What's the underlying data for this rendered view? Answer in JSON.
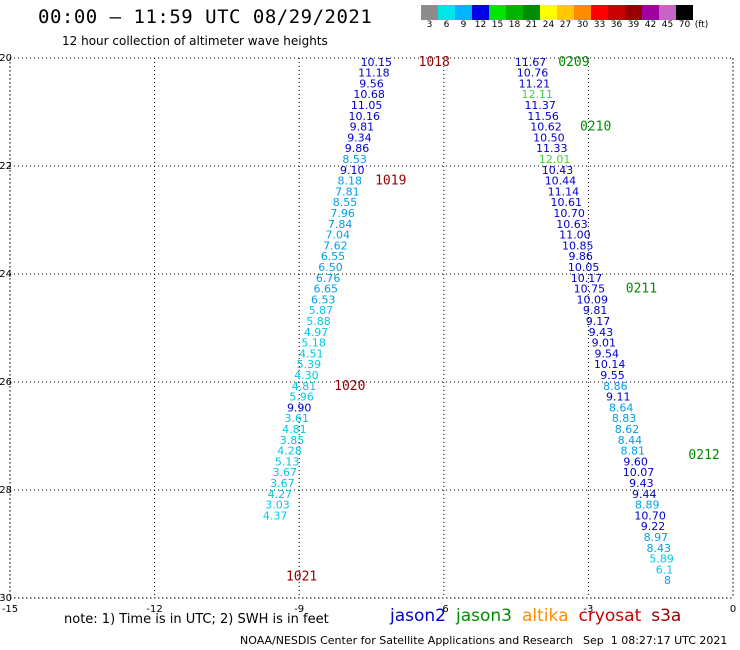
{
  "header": {
    "title": "00:00 – 11:59 UTC 08/29/2021",
    "subtitle": "12 hour collection of altimeter wave heights"
  },
  "legend": {
    "unit": "(ft)",
    "bins": [
      {
        "label": "3",
        "color": "#8c8c8c"
      },
      {
        "label": "6",
        "color": "#00e5e5"
      },
      {
        "label": "9",
        "color": "#00b4ff"
      },
      {
        "label": "12",
        "color": "#0000e6"
      },
      {
        "label": "15",
        "color": "#00e600"
      },
      {
        "label": "18",
        "color": "#00b400"
      },
      {
        "label": "21",
        "color": "#008c00"
      },
      {
        "label": "24",
        "color": "#ffff00"
      },
      {
        "label": "27",
        "color": "#ffc800"
      },
      {
        "label": "30",
        "color": "#ff8c00"
      },
      {
        "label": "33",
        "color": "#ff0000"
      },
      {
        "label": "36",
        "color": "#c80000"
      },
      {
        "label": "39",
        "color": "#960000"
      },
      {
        "label": "42",
        "color": "#a000a0"
      },
      {
        "label": "45",
        "color": "#c864c8"
      },
      {
        "label": "70",
        "color": "#000000"
      }
    ]
  },
  "footer": {
    "note": "note: 1) Time is in UTC; 2) SWH is in feet",
    "satellites": [
      {
        "name": "jason2",
        "color": "#0000cc"
      },
      {
        "name": "jason3",
        "color": "#008c00"
      },
      {
        "name": "altika",
        "color": "#ff8c00"
      },
      {
        "name": "cryosat",
        "color": "#cc0000"
      },
      {
        "name": "s3a",
        "color": "#960000"
      }
    ],
    "credit": "NOAA/NESDIS Center for Satellite Applications and Research",
    "generated": "Sep  1 08:27:17 UTC 2021"
  },
  "chart_data": {
    "type": "scatter",
    "title": "00:00 – 11:59 UTC 08/29/2021",
    "subtitle": "12 hour collection of altimeter wave heights",
    "xlim": [
      -15,
      0
    ],
    "ylim": [
      -30,
      -20
    ],
    "x_ticks": [
      -15,
      -12,
      -9,
      -6,
      -3,
      0
    ],
    "y_ticks": [
      -20,
      -22,
      -24,
      -26,
      -28,
      -30
    ],
    "grid": true,
    "series": [
      {
        "name": "track-west",
        "points": [
          {
            "x": -7.4,
            "y": -20.07,
            "v": "10.15",
            "c": "#0000cc"
          },
          {
            "x": -7.45,
            "y": -20.27,
            "v": "11.18",
            "c": "#0000cc"
          },
          {
            "x": -7.5,
            "y": -20.47,
            "v": "9.56",
            "c": "#0000cc"
          },
          {
            "x": -7.55,
            "y": -20.67,
            "v": "10.68",
            "c": "#0000cc"
          },
          {
            "x": -7.6,
            "y": -20.87,
            "v": "11.05",
            "c": "#0000cc"
          },
          {
            "x": -7.65,
            "y": -21.07,
            "v": "10.16",
            "c": "#0000cc"
          },
          {
            "x": -7.7,
            "y": -21.27,
            "v": "9.81",
            "c": "#0000cc"
          },
          {
            "x": -7.75,
            "y": -21.47,
            "v": "9.34",
            "c": "#0000cc"
          },
          {
            "x": -7.8,
            "y": -21.67,
            "v": "9.86",
            "c": "#0000cc"
          },
          {
            "x": -7.85,
            "y": -21.87,
            "v": "8.53",
            "c": "#00a0e6"
          },
          {
            "x": -7.9,
            "y": -22.07,
            "v": "9.10",
            "c": "#0000cc"
          },
          {
            "x": -7.95,
            "y": -22.27,
            "v": "8.18",
            "c": "#00a0e6"
          },
          {
            "x": -8.0,
            "y": -22.47,
            "v": "7.81",
            "c": "#00a0e6"
          },
          {
            "x": -8.05,
            "y": -22.67,
            "v": "8.55",
            "c": "#00a0e6"
          },
          {
            "x": -8.1,
            "y": -22.87,
            "v": "7.96",
            "c": "#00a0e6"
          },
          {
            "x": -8.15,
            "y": -23.07,
            "v": "7.84",
            "c": "#00a0e6"
          },
          {
            "x": -8.2,
            "y": -23.27,
            "v": "7.04",
            "c": "#00a0e6"
          },
          {
            "x": -8.25,
            "y": -23.47,
            "v": "7.62",
            "c": "#00a0e6"
          },
          {
            "x": -8.3,
            "y": -23.67,
            "v": "6.55",
            "c": "#00a0e6"
          },
          {
            "x": -8.35,
            "y": -23.87,
            "v": "6.50",
            "c": "#00a0e6"
          },
          {
            "x": -8.4,
            "y": -24.07,
            "v": "6.76",
            "c": "#00a0e6"
          },
          {
            "x": -8.45,
            "y": -24.27,
            "v": "6.65",
            "c": "#00a0e6"
          },
          {
            "x": -8.5,
            "y": -24.47,
            "v": "6.53",
            "c": "#00a0e6"
          },
          {
            "x": -8.55,
            "y": -24.67,
            "v": "5.87",
            "c": "#00c8e6"
          },
          {
            "x": -8.6,
            "y": -24.87,
            "v": "5.88",
            "c": "#00c8e6"
          },
          {
            "x": -8.65,
            "y": -25.07,
            "v": "4.97",
            "c": "#00c8e6"
          },
          {
            "x": -8.7,
            "y": -25.27,
            "v": "5.18",
            "c": "#00c8e6"
          },
          {
            "x": -8.75,
            "y": -25.47,
            "v": "4.51",
            "c": "#00c8e6"
          },
          {
            "x": -8.8,
            "y": -25.67,
            "v": "5.39",
            "c": "#00c8e6"
          },
          {
            "x": -8.85,
            "y": -25.87,
            "v": "4.30",
            "c": "#00c8e6"
          },
          {
            "x": -8.9,
            "y": -26.07,
            "v": "4.81",
            "c": "#00c8e6"
          },
          {
            "x": -8.95,
            "y": -26.27,
            "v": "5.96",
            "c": "#00c8e6"
          },
          {
            "x": -9.0,
            "y": -26.47,
            "v": "9.90",
            "c": "#0000cc"
          },
          {
            "x": -9.05,
            "y": -26.67,
            "v": "3.61",
            "c": "#00c8e6"
          },
          {
            "x": -9.1,
            "y": -26.87,
            "v": "4.81",
            "c": "#00c8e6"
          },
          {
            "x": -9.15,
            "y": -27.07,
            "v": "3.85",
            "c": "#00c8e6"
          },
          {
            "x": -9.2,
            "y": -27.27,
            "v": "4.28",
            "c": "#00c8e6"
          },
          {
            "x": -9.25,
            "y": -27.47,
            "v": "5.13",
            "c": "#00c8e6"
          },
          {
            "x": -9.3,
            "y": -27.67,
            "v": "3.67",
            "c": "#00c8e6"
          },
          {
            "x": -9.35,
            "y": -27.87,
            "v": "3.67",
            "c": "#00c8e6"
          },
          {
            "x": -9.4,
            "y": -28.07,
            "v": "4.27",
            "c": "#00c8e6"
          },
          {
            "x": -9.45,
            "y": -28.27,
            "v": "3.03",
            "c": "#00c8e6"
          },
          {
            "x": -9.5,
            "y": -28.47,
            "v": "4.37",
            "c": "#00c8e6"
          }
        ]
      },
      {
        "name": "track-east",
        "points": [
          {
            "x": -4.2,
            "y": -20.07,
            "v": "11.67",
            "c": "#0000cc"
          },
          {
            "x": -4.16,
            "y": -20.27,
            "v": "10.76",
            "c": "#0000cc"
          },
          {
            "x": -4.12,
            "y": -20.47,
            "v": "11.21",
            "c": "#0000cc"
          },
          {
            "x": -4.06,
            "y": -20.67,
            "v": "12.11",
            "c": "#44cc44"
          },
          {
            "x": -4.0,
            "y": -20.87,
            "v": "11.37",
            "c": "#0000cc"
          },
          {
            "x": -3.94,
            "y": -21.07,
            "v": "11.56",
            "c": "#0000cc"
          },
          {
            "x": -3.88,
            "y": -21.27,
            "v": "10.62",
            "c": "#0000cc"
          },
          {
            "x": -3.82,
            "y": -21.47,
            "v": "10.50",
            "c": "#0000cc"
          },
          {
            "x": -3.76,
            "y": -21.67,
            "v": "11.33",
            "c": "#0000cc"
          },
          {
            "x": -3.7,
            "y": -21.87,
            "v": "12.01",
            "c": "#44cc44"
          },
          {
            "x": -3.64,
            "y": -22.07,
            "v": "10.43",
            "c": "#0000cc"
          },
          {
            "x": -3.58,
            "y": -22.27,
            "v": "10.44",
            "c": "#0000cc"
          },
          {
            "x": -3.52,
            "y": -22.47,
            "v": "11.14",
            "c": "#0000cc"
          },
          {
            "x": -3.46,
            "y": -22.67,
            "v": "10.61",
            "c": "#0000cc"
          },
          {
            "x": -3.4,
            "y": -22.87,
            "v": "10.70",
            "c": "#0000cc"
          },
          {
            "x": -3.34,
            "y": -23.07,
            "v": "10.63",
            "c": "#0000cc"
          },
          {
            "x": -3.28,
            "y": -23.27,
            "v": "11.00",
            "c": "#0000cc"
          },
          {
            "x": -3.22,
            "y": -23.47,
            "v": "10.85",
            "c": "#0000cc"
          },
          {
            "x": -3.16,
            "y": -23.67,
            "v": "9.86",
            "c": "#0000cc"
          },
          {
            "x": -3.1,
            "y": -23.87,
            "v": "10.05",
            "c": "#0000cc"
          },
          {
            "x": -3.04,
            "y": -24.07,
            "v": "10.17",
            "c": "#0000cc"
          },
          {
            "x": -2.98,
            "y": -24.27,
            "v": "10.75",
            "c": "#0000cc"
          },
          {
            "x": -2.92,
            "y": -24.47,
            "v": "10.09",
            "c": "#0000cc"
          },
          {
            "x": -2.86,
            "y": -24.67,
            "v": "9.81",
            "c": "#0000cc"
          },
          {
            "x": -2.8,
            "y": -24.87,
            "v": "9.17",
            "c": "#0000cc"
          },
          {
            "x": -2.74,
            "y": -25.07,
            "v": "9.43",
            "c": "#0000cc"
          },
          {
            "x": -2.68,
            "y": -25.27,
            "v": "9.01",
            "c": "#0000cc"
          },
          {
            "x": -2.62,
            "y": -25.47,
            "v": "9.54",
            "c": "#0000cc"
          },
          {
            "x": -2.56,
            "y": -25.67,
            "v": "10.14",
            "c": "#0000cc"
          },
          {
            "x": -2.5,
            "y": -25.87,
            "v": "9.55",
            "c": "#0000cc"
          },
          {
            "x": -2.44,
            "y": -26.07,
            "v": "8.86",
            "c": "#00a0e6"
          },
          {
            "x": -2.38,
            "y": -26.27,
            "v": "9.11",
            "c": "#0000cc"
          },
          {
            "x": -2.32,
            "y": -26.47,
            "v": "8.64",
            "c": "#00a0e6"
          },
          {
            "x": -2.26,
            "y": -26.67,
            "v": "8.83",
            "c": "#00a0e6"
          },
          {
            "x": -2.2,
            "y": -26.87,
            "v": "8.62",
            "c": "#00a0e6"
          },
          {
            "x": -2.14,
            "y": -27.07,
            "v": "8.44",
            "c": "#00a0e6"
          },
          {
            "x": -2.08,
            "y": -27.27,
            "v": "8.81",
            "c": "#00a0e6"
          },
          {
            "x": -2.02,
            "y": -27.47,
            "v": "9.60",
            "c": "#0000cc"
          },
          {
            "x": -1.96,
            "y": -27.67,
            "v": "10.07",
            "c": "#0000cc"
          },
          {
            "x": -1.9,
            "y": -27.87,
            "v": "9.43",
            "c": "#0000cc"
          },
          {
            "x": -1.84,
            "y": -28.07,
            "v": "9.44",
            "c": "#0000cc"
          },
          {
            "x": -1.78,
            "y": -28.27,
            "v": "8.89",
            "c": "#00a0e6"
          },
          {
            "x": -1.72,
            "y": -28.47,
            "v": "10.70",
            "c": "#0000cc"
          },
          {
            "x": -1.66,
            "y": -28.67,
            "v": "9.22",
            "c": "#0000cc"
          },
          {
            "x": -1.6,
            "y": -28.87,
            "v": "8.97",
            "c": "#00a0e6"
          },
          {
            "x": -1.54,
            "y": -29.07,
            "v": "8.43",
            "c": "#00a0e6"
          },
          {
            "x": -1.48,
            "y": -29.27,
            "v": "5.89",
            "c": "#00c8e6"
          },
          {
            "x": -1.42,
            "y": -29.47,
            "v": "6.1",
            "c": "#00c8e6"
          },
          {
            "x": -1.36,
            "y": -29.67,
            "v": "8",
            "c": "#00a0e6"
          }
        ]
      }
    ],
    "annotations": [
      {
        "text": "1018",
        "x": -6.2,
        "y": -20.07,
        "color": "#960000"
      },
      {
        "text": "1019",
        "x": -7.1,
        "y": -22.27,
        "color": "#960000"
      },
      {
        "text": "1020",
        "x": -7.95,
        "y": -26.07,
        "color": "#960000"
      },
      {
        "text": "1021",
        "x": -8.95,
        "y": -29.6,
        "color": "#960000"
      },
      {
        "text": "0209",
        "x": -3.3,
        "y": -20.07,
        "color": "#008c00"
      },
      {
        "text": "0210",
        "x": -2.85,
        "y": -21.27,
        "color": "#008c00"
      },
      {
        "text": "0211",
        "x": -1.9,
        "y": -24.27,
        "color": "#008c00"
      },
      {
        "text": "0212",
        "x": -0.6,
        "y": -27.35,
        "color": "#008c00"
      }
    ]
  }
}
